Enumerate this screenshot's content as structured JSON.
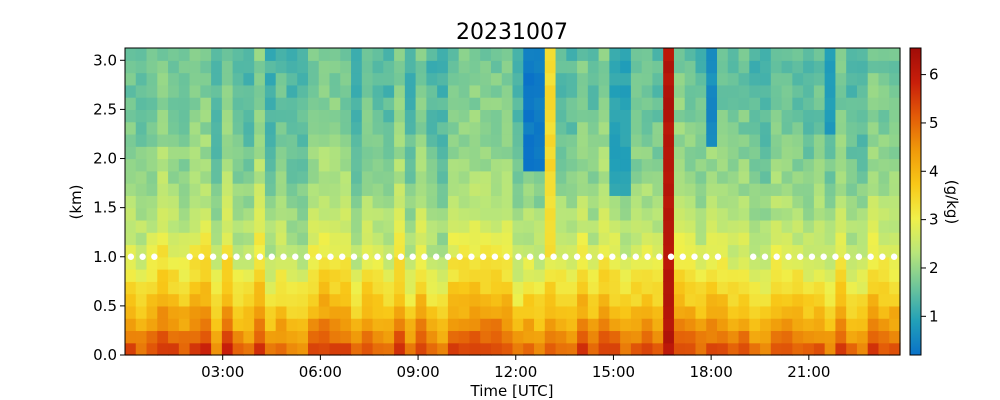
{
  "chart_data": {
    "type": "heatmap",
    "title": "20231007",
    "xlabel": "Time [UTC]",
    "ylabel": "(km)",
    "colorbar_label": "(g/kg)",
    "x_ticks": [
      "03:00",
      "06:00",
      "09:00",
      "12:00",
      "15:00",
      "18:00",
      "21:00"
    ],
    "x_tick_hours": [
      3,
      6,
      9,
      12,
      15,
      18,
      21
    ],
    "xlim_hours": [
      0,
      23.8
    ],
    "y_ticks": [
      "0.0",
      "0.5",
      "1.0",
      "1.5",
      "2.0",
      "2.5",
      "3.0"
    ],
    "ylim_km": [
      0,
      3.125
    ],
    "colorbar_ticks": [
      "1",
      "2",
      "3",
      "4",
      "5",
      "6"
    ],
    "clim": [
      0.2,
      6.55
    ],
    "colormap": [
      "#0a72c8",
      "#22a0b8",
      "#6ec59a",
      "#b8e67a",
      "#f0f04a",
      "#f8c818",
      "#f09a0a",
      "#e35b08",
      "#c81e0a",
      "#a00c08"
    ],
    "grid": false,
    "marker_altitude_km": 1.0,
    "marker_color": "#ffffff",
    "n_time_steps": 72,
    "height_levels_km": [
      0.0625,
      0.1875,
      0.3125,
      0.4375,
      0.5625,
      0.6875,
      0.8125,
      0.9375,
      1.0625,
      1.1875,
      1.3125,
      1.4375,
      1.5625,
      1.6875,
      1.8125,
      1.9375,
      2.0625,
      2.1875,
      2.3125,
      2.4375,
      2.5625,
      2.6875,
      2.8125,
      2.9375,
      3.0625
    ],
    "profile_surface_gkg": 5.4,
    "profile_decay_per_km": 0.62,
    "profile_min_gkg": 1.3,
    "anomalies_gkg": [
      {
        "hour_start": 12.2,
        "hour_end": 12.8,
        "z_min_km": 1.9,
        "value": 0.3
      },
      {
        "hour_start": 12.8,
        "hour_end": 13.1,
        "z_min_km": 1.0,
        "value": 3.4
      },
      {
        "hour_start": 15.0,
        "hour_end": 15.4,
        "z_min_km": 1.6,
        "value": 1.0
      },
      {
        "hour_start": 16.5,
        "hour_end": 16.8,
        "z_min_km": 0.0,
        "value": 6.2
      },
      {
        "hour_start": 17.9,
        "hour_end": 18.2,
        "z_min_km": 2.1,
        "value": 0.6
      },
      {
        "hour_start": 21.4,
        "hour_end": 21.7,
        "z_min_km": 2.3,
        "value": 0.8
      }
    ]
  }
}
